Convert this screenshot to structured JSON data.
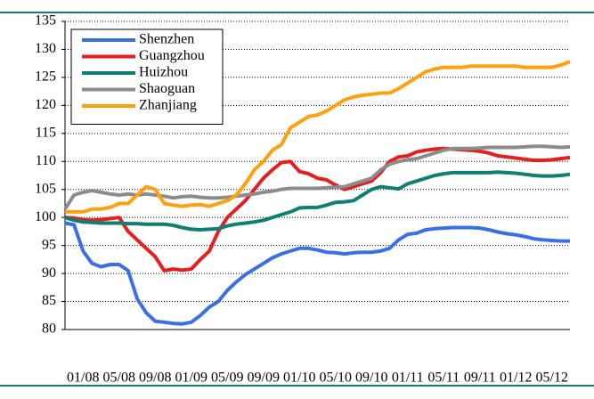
{
  "chart_data": {
    "type": "line",
    "categories": [
      null,
      null,
      "01/08",
      null,
      null,
      null,
      "05/08",
      null,
      null,
      null,
      "09/08",
      null,
      null,
      null,
      "01/09",
      null,
      null,
      null,
      "05/09",
      null,
      null,
      null,
      "09/09",
      null,
      null,
      null,
      "01/10",
      null,
      null,
      null,
      "05/10",
      null,
      null,
      null,
      "09/10",
      null,
      null,
      null,
      "01/11",
      null,
      null,
      null,
      "05/11",
      null,
      null,
      null,
      "09/11",
      null,
      null,
      null,
      "01/12",
      null,
      null,
      null,
      "05/12",
      null,
      null
    ],
    "series": [
      {
        "name": "Shenzhen",
        "color": "#3a6fe8",
        "values": [
          99,
          98.7,
          94,
          91.8,
          91.2,
          91.6,
          91.6,
          90.5,
          85.5,
          83,
          81.5,
          81.3,
          81.1,
          81,
          81.3,
          82.5,
          84,
          85,
          87,
          88.5,
          89.8,
          90.8,
          91.8,
          92.8,
          93.5,
          94,
          94.5,
          94.5,
          94.2,
          93.8,
          93.7,
          93.5,
          93.7,
          93.8,
          93.8,
          94,
          94.5,
          96,
          97,
          97.2,
          97.8,
          98,
          98.1,
          98.2,
          98.2,
          98.2,
          98.1,
          97.8,
          97.4,
          97.1,
          96.9,
          96.6,
          96.2,
          96,
          95.9,
          95.8,
          95.8
        ]
      },
      {
        "name": "Guangzhou",
        "color": "#e61e1e",
        "values": [
          100,
          99.9,
          99.6,
          99.5,
          99.6,
          99.8,
          100,
          97.5,
          96,
          94.5,
          93,
          90.5,
          90.8,
          90.6,
          90.8,
          92.5,
          94,
          97.5,
          100,
          101.5,
          103,
          105,
          107,
          108.5,
          109.8,
          110,
          108.2,
          107.8,
          107,
          106.7,
          105.8,
          105,
          105.5,
          106,
          106.5,
          108,
          110,
          110.8,
          111,
          111.7,
          112,
          112.2,
          112.3,
          112.2,
          112.1,
          112,
          111.8,
          111.5,
          111,
          110.8,
          110.6,
          110.4,
          110.2,
          110.2,
          110.3,
          110.5,
          110.7
        ]
      },
      {
        "name": "Huizhou",
        "color": "#0e7f72",
        "values": [
          100,
          99.5,
          99.2,
          99.1,
          99,
          99,
          99,
          98.9,
          98.9,
          98.8,
          98.8,
          98.8,
          98.6,
          98.2,
          97.9,
          97.8,
          97.9,
          98,
          98.5,
          98.8,
          99,
          99.2,
          99.5,
          100,
          100.5,
          101,
          101.7,
          101.8,
          101.8,
          102.2,
          102.7,
          102.8,
          103,
          104,
          105,
          105.5,
          105.3,
          105.1,
          106,
          106.5,
          107,
          107.5,
          107.8,
          108,
          108,
          108,
          108,
          108,
          108.1,
          108,
          107.9,
          107.7,
          107.5,
          107.4,
          107.4,
          107.5,
          107.7
        ]
      },
      {
        "name": "Shaoguan",
        "color": "#8c8c8c",
        "values": [
          101.5,
          104,
          104.5,
          104.8,
          104.5,
          104.2,
          104,
          104.2,
          104,
          104.2,
          104,
          103.8,
          103.5,
          103.7,
          103.8,
          103.6,
          103.5,
          103.5,
          103.6,
          103.8,
          104,
          104.2,
          104.5,
          104.7,
          105,
          105.2,
          105.2,
          105.2,
          105.2,
          105.3,
          105.4,
          105.5,
          106,
          106.5,
          107,
          108.5,
          109.5,
          110,
          110.3,
          110.5,
          111,
          111.5,
          112,
          112.3,
          112.3,
          112.3,
          112.4,
          112.5,
          112.5,
          112.5,
          112.5,
          112.6,
          112.7,
          112.7,
          112.6,
          112.5,
          112.6
        ]
      },
      {
        "name": "Zhanjiang",
        "color": "#ffa010",
        "values": [
          101,
          101,
          101,
          101.5,
          101.5,
          101.8,
          102.5,
          102.5,
          104,
          105.5,
          105,
          102.5,
          102.2,
          102,
          102.2,
          102.3,
          102,
          102.5,
          103,
          104,
          106,
          108.5,
          110,
          112,
          113,
          116,
          117,
          118,
          118.3,
          119,
          120,
          121,
          121.5,
          121.8,
          122,
          122.2,
          122.2,
          123,
          124,
          125,
          126,
          126.5,
          126.8,
          126.8,
          126.8,
          127,
          127,
          127,
          127,
          127,
          127,
          126.8,
          126.8,
          126.8,
          126.8,
          127.2,
          127.8
        ]
      }
    ],
    "ylim": [
      80,
      135
    ],
    "yticks": [
      80,
      85,
      90,
      95,
      100,
      105,
      110,
      115,
      120,
      125,
      130,
      135
    ],
    "grid": true,
    "legend": "upper-left"
  }
}
